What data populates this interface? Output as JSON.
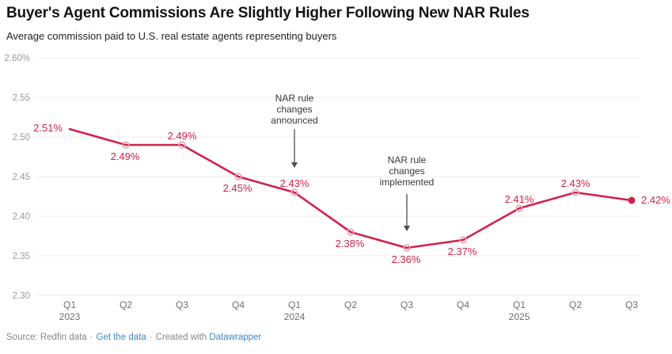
{
  "chart_data": {
    "type": "line",
    "title": "Buyer's Agent Commissions Are Slightly Higher Following New NAR Rules",
    "subtitle": "Average commission paid to U.S. real estate agents representing buyers",
    "unit": "%",
    "ylim": [
      2.3,
      2.6
    ],
    "grid": "horizontal",
    "legend_position": "none",
    "categories": [
      "Q1 2023",
      "Q2 2023",
      "Q3 2023",
      "Q4 2023",
      "Q1 2024",
      "Q2 2024",
      "Q3 2024",
      "Q4 2024",
      "Q1 2025",
      "Q2 2025",
      "Q3 2025"
    ],
    "values": [
      2.51,
      2.49,
      2.49,
      2.45,
      2.43,
      2.38,
      2.36,
      2.37,
      2.41,
      2.43,
      2.42
    ],
    "y_ticks": [
      {
        "value": 2.6,
        "label": "2.60%"
      },
      {
        "value": 2.55,
        "label": "2.55"
      },
      {
        "value": 2.5,
        "label": "2.50"
      },
      {
        "value": 2.45,
        "label": "2.45"
      },
      {
        "value": 2.4,
        "label": "2.40"
      },
      {
        "value": 2.35,
        "label": "2.35"
      },
      {
        "value": 2.3,
        "label": "2.30"
      }
    ],
    "x_ticks": [
      {
        "quarter": "Q1",
        "year": "2023"
      },
      {
        "quarter": "Q2"
      },
      {
        "quarter": "Q3"
      },
      {
        "quarter": "Q4"
      },
      {
        "quarter": "Q1",
        "year": "2024"
      },
      {
        "quarter": "Q2"
      },
      {
        "quarter": "Q3"
      },
      {
        "quarter": "Q4"
      },
      {
        "quarter": "Q1",
        "year": "2025"
      },
      {
        "quarter": "Q2"
      },
      {
        "quarter": "Q3"
      }
    ],
    "points": [
      {
        "value": 2.51,
        "label": "2.51%",
        "label_pos": "left",
        "marker": "none"
      },
      {
        "value": 2.49,
        "label": "2.49%",
        "label_pos": "below",
        "marker": "open"
      },
      {
        "value": 2.49,
        "label": "2.49%",
        "label_pos": "above",
        "marker": "open"
      },
      {
        "value": 2.45,
        "label": "2.45%",
        "label_pos": "below",
        "marker": "open"
      },
      {
        "value": 2.43,
        "label": "2.43%",
        "label_pos": "above",
        "marker": "open"
      },
      {
        "value": 2.38,
        "label": "2.38%",
        "label_pos": "below",
        "marker": "open"
      },
      {
        "value": 2.36,
        "label": "2.36%",
        "label_pos": "below",
        "marker": "open"
      },
      {
        "value": 2.37,
        "label": "2.37%",
        "label_pos": "below",
        "marker": "open"
      },
      {
        "value": 2.41,
        "label": "2.41%",
        "label_pos": "above",
        "marker": "open"
      },
      {
        "value": 2.43,
        "label": "2.43%",
        "label_pos": "above",
        "marker": "open"
      },
      {
        "value": 2.42,
        "label": "2.42%",
        "label_pos": "right",
        "marker": "filled"
      }
    ],
    "annotations": [
      {
        "lines": [
          "NAR rule",
          "changes",
          "announced"
        ],
        "anchor_index": 4
      },
      {
        "lines": [
          "NAR rule",
          "changes",
          "implemented"
        ],
        "anchor_index": 6
      }
    ]
  },
  "colors": {
    "line": "#d02349",
    "marker_open_stroke": "#e9a2b4",
    "marker_filled": "#d02349",
    "data_label": "#d02349",
    "grid": "#ededed",
    "y_axis_text": "#9b9b9b",
    "x_axis_text": "#6e6e6e",
    "annotation_text": "#383838",
    "arrow": "#4d4d4d",
    "link": "#3d87c9"
  },
  "footer": {
    "source_text": "Source: Redfin data",
    "separator": "·",
    "get_data_label": "Get the data",
    "created_with_label": "Created with",
    "tool_label": "Datawrapper"
  }
}
